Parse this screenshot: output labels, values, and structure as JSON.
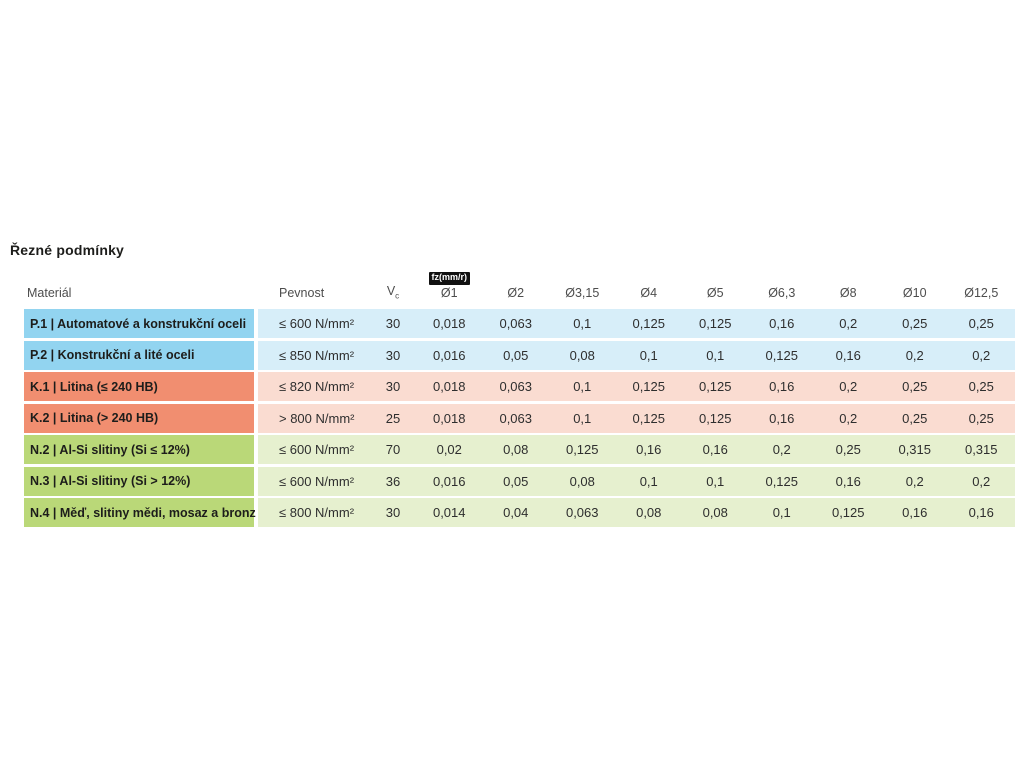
{
  "page": {
    "title": "Řezné podmínky"
  },
  "table": {
    "feed_unit_badge": "fz(mm/r)",
    "columns": [
      {
        "key": "material",
        "label": "Materiál",
        "align": "left",
        "pad": "material"
      },
      {
        "key": "pevnost",
        "label": "Pevnost",
        "align": "left",
        "pad": "pevnost"
      },
      {
        "key": "vc",
        "label": "V",
        "sub": "c",
        "align": "center"
      },
      {
        "key": "d1",
        "label": "Ø1",
        "align": "center",
        "badge": true
      },
      {
        "key": "d2",
        "label": "Ø2",
        "align": "center"
      },
      {
        "key": "d315",
        "label": "Ø3,15",
        "align": "center"
      },
      {
        "key": "d4",
        "label": "Ø4",
        "align": "center"
      },
      {
        "key": "d5",
        "label": "Ø5",
        "align": "center"
      },
      {
        "key": "d63",
        "label": "Ø6,3",
        "align": "center"
      },
      {
        "key": "d8",
        "label": "Ø8",
        "align": "center"
      },
      {
        "key": "d10",
        "label": "Ø10",
        "align": "center"
      },
      {
        "key": "d125",
        "label": "Ø12,5",
        "align": "center"
      }
    ],
    "rows": [
      {
        "id": "p1",
        "group": "P",
        "material": "P.1 | Automatové a konstrukční oceli",
        "pevnost": "≤ 600 N/mm²",
        "vc": "30",
        "feeds": [
          "0,018",
          "0,063",
          "0,1",
          "0,125",
          "0,125",
          "0,16",
          "0,2",
          "0,25",
          "0,25"
        ]
      },
      {
        "id": "p2",
        "group": "P",
        "material": "P.2 | Konstrukční a lité oceli",
        "pevnost": "≤ 850 N/mm²",
        "vc": "30",
        "feeds": [
          "0,016",
          "0,05",
          "0,08",
          "0,1",
          "0,1",
          "0,125",
          "0,16",
          "0,2",
          "0,2"
        ]
      },
      {
        "id": "k1",
        "group": "K",
        "material": "K.1 | Litina (≤ 240 HB)",
        "pevnost": "≤ 820 N/mm²",
        "vc": "30",
        "feeds": [
          "0,018",
          "0,063",
          "0,1",
          "0,125",
          "0,125",
          "0,16",
          "0,2",
          "0,25",
          "0,25"
        ]
      },
      {
        "id": "k2",
        "group": "K",
        "material": "K.2 | Litina (> 240 HB)",
        "pevnost": "> 800 N/mm²",
        "vc": "25",
        "feeds": [
          "0,018",
          "0,063",
          "0,1",
          "0,125",
          "0,125",
          "0,16",
          "0,2",
          "0,25",
          "0,25"
        ]
      },
      {
        "id": "n2",
        "group": "N",
        "material": "N.2 | Al-Si slitiny (Si ≤ 12%)",
        "pevnost": "≤ 600 N/mm²",
        "vc": "70",
        "feeds": [
          "0,02",
          "0,08",
          "0,125",
          "0,16",
          "0,16",
          "0,2",
          "0,25",
          "0,315",
          "0,315"
        ]
      },
      {
        "id": "n3",
        "group": "N",
        "material": "N.3 | Al-Si slitiny (Si > 12%)",
        "pevnost": "≤ 600 N/mm²",
        "vc": "36",
        "feeds": [
          "0,016",
          "0,05",
          "0,08",
          "0,1",
          "0,1",
          "0,125",
          "0,16",
          "0,2",
          "0,2"
        ]
      },
      {
        "id": "n4",
        "group": "N",
        "material": "N.4 | Měď, slitiny mědi, mosaz a bronz",
        "pevnost": "≤ 800 N/mm²",
        "vc": "30",
        "feeds": [
          "0,014",
          "0,04",
          "0,063",
          "0,08",
          "0,08",
          "0,1",
          "0,125",
          "0,16",
          "0,16"
        ]
      }
    ]
  },
  "colors": {
    "group_P_label": "#92d4f0",
    "group_P_row": "#d7eef9",
    "group_K_label": "#f18e70",
    "group_K_row": "#fadcd1",
    "group_N_label": "#bad878",
    "group_N_row": "#e6f0cf",
    "badge_bg": "#111111",
    "badge_text": "#ffffff"
  }
}
